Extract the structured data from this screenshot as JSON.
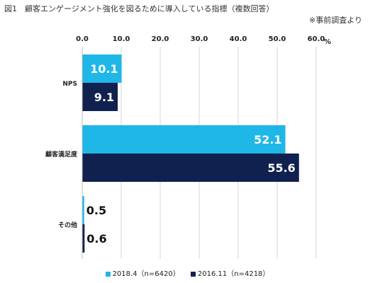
{
  "title": "図1　顧客エンゲージメント強化を図るために導入している指標（複数回答）",
  "source_note": "※事前調査より",
  "chart_data": {
    "type": "bar",
    "orientation": "horizontal",
    "unit": "%",
    "categories": [
      "NPS",
      "顧客満足度",
      "その他"
    ],
    "series": [
      {
        "name": "2018.4（n=6420）",
        "color": "#1fb7e8",
        "values": [
          10.1,
          52.1,
          0.5
        ]
      },
      {
        "name": "2016.11（n=4218）",
        "color": "#10214f",
        "values": [
          9.1,
          55.6,
          0.6
        ]
      }
    ],
    "xlim": [
      0,
      60
    ],
    "xticks": [
      "0.0",
      "10.0",
      "20.0",
      "30.0",
      "40.0",
      "50.0",
      "60.0"
    ],
    "grid": true,
    "legend_position": "bottom"
  }
}
